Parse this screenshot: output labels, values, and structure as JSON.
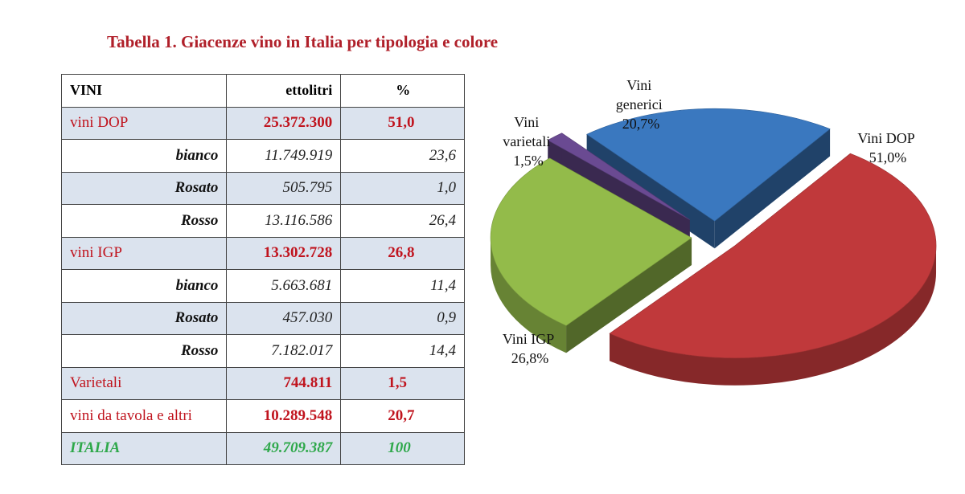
{
  "title": "Tabella 1. Giacenze vino in Italia per tipologia e colore",
  "table": {
    "headers": [
      "VINI",
      "ettolitri",
      "%"
    ],
    "rows": [
      {
        "label": "vini DOP",
        "value": "25.372.300",
        "pct": "51,0"
      },
      {
        "label": "bianco",
        "value": "11.749.919",
        "pct": "23,6"
      },
      {
        "label": "Rosato",
        "value": "505.795",
        "pct": "1,0"
      },
      {
        "label": "Rosso",
        "value": "13.116.586",
        "pct": "26,4"
      },
      {
        "label": "vini IGP",
        "value": "13.302.728",
        "pct": "26,8"
      },
      {
        "label": "bianco",
        "value": "5.663.681",
        "pct": "11,4"
      },
      {
        "label": "Rosato",
        "value": "457.030",
        "pct": "0,9"
      },
      {
        "label": "Rosso",
        "value": "7.182.017",
        "pct": "14,4"
      },
      {
        "label": "Varietali",
        "value": "744.811",
        "pct": "1,5"
      },
      {
        "label": "vini da tavola e altri",
        "value": "10.289.548",
        "pct": "20,7"
      },
      {
        "label": "ITALIA",
        "value": "49.709.387",
        "pct": "100"
      }
    ]
  },
  "pie": {
    "labels": [
      {
        "name_lines": [
          "Vini DOP"
        ],
        "pct": "51,0%"
      },
      {
        "name_lines": [
          "Vini IGP"
        ],
        "pct": "26,8%"
      },
      {
        "name_lines": [
          "Vini",
          "varietali"
        ],
        "pct": "1,5%"
      },
      {
        "name_lines": [
          "Vini",
          "generici"
        ],
        "pct": "20,7%"
      }
    ]
  },
  "chart_data": {
    "type": "pie",
    "categories": [
      "Vini DOP",
      "Vini IGP",
      "Vini varietali",
      "Vini generici"
    ],
    "values": [
      51.0,
      26.8,
      1.5,
      20.7
    ],
    "colors": [
      "#c0393b",
      "#93bb4a",
      "#6a4a92",
      "#3a78bf"
    ],
    "exploded": true
  }
}
